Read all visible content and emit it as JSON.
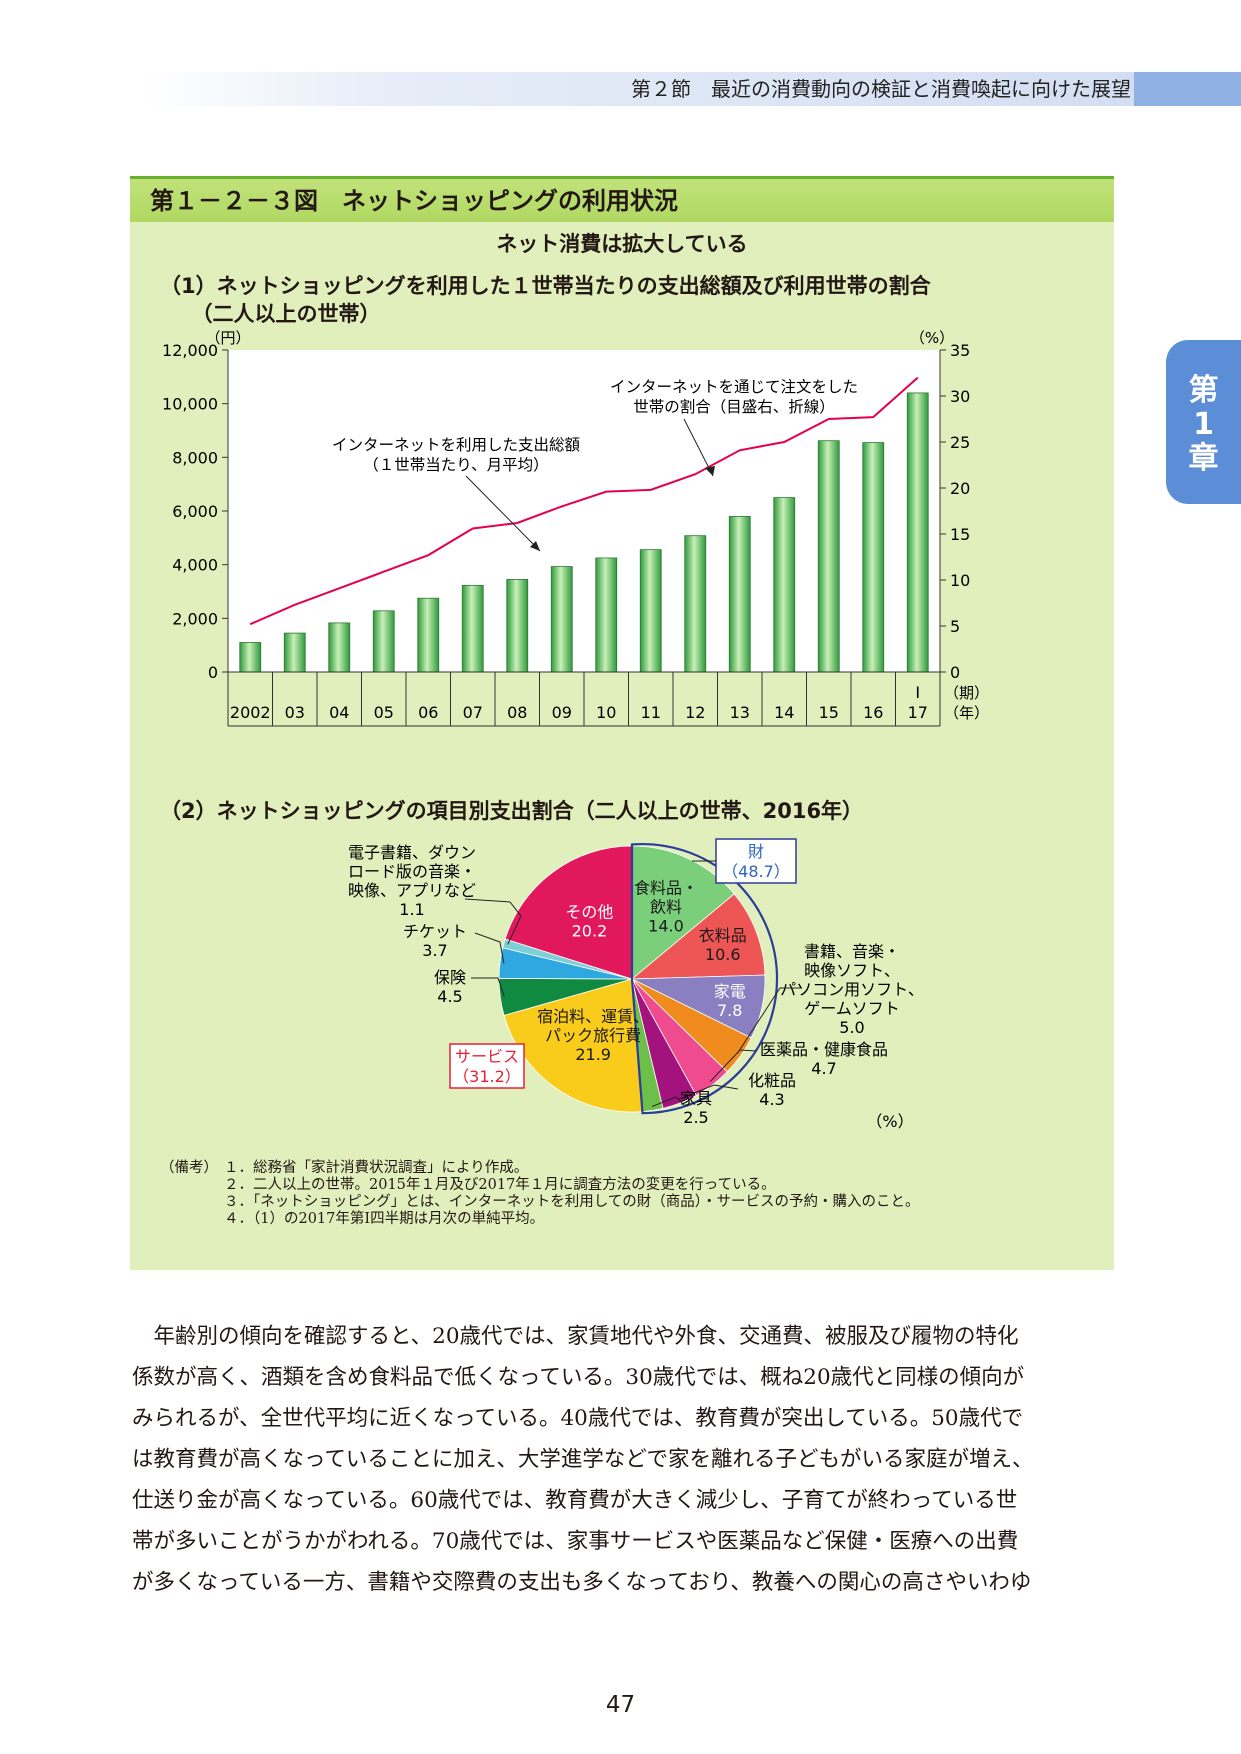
{
  "header": {
    "section": "第２節　最近の消費動向の検証と消費喚起に向けた展望"
  },
  "chapter_tab": {
    "line1": "第",
    "line2": "1",
    "line3": "章"
  },
  "figure": {
    "title": "第１－２－３図　ネットショッピングの利用状況",
    "subtitle": "ネット消費は拡大している",
    "section1_title": "（1）ネットショッピングを利用した１世帯当たりの支出総額及び利用世帯の割合\n　　（二人以上の世帯）",
    "section2_title": "（2）ネットショッピングの項目別支出割合（二人以上の世帯、2016年）"
  },
  "chart_data": [
    {
      "type": "bar",
      "categories": [
        "2002",
        "03",
        "04",
        "05",
        "06",
        "07",
        "08",
        "09",
        "10",
        "11",
        "12",
        "13",
        "14",
        "15",
        "16",
        "17"
      ],
      "period_marker": {
        "category": "17",
        "label": "Ⅰ",
        "unit": "（期）"
      },
      "x_unit": "（年）",
      "y_left_unit": "（円）",
      "y_right_unit": "（%）",
      "ylim_left": [
        0,
        12000
      ],
      "ylim_right": [
        0,
        35
      ],
      "yticks_left": [
        "0",
        "2,000",
        "4,000",
        "6,000",
        "8,000",
        "10,000",
        "12,000"
      ],
      "yticks_right": [
        "0",
        "5",
        "10",
        "15",
        "20",
        "25",
        "30",
        "35"
      ],
      "series": [
        {
          "name": "インターネットを利用した支出総額（１世帯当たり、月平均）",
          "type": "bar",
          "axis": "left",
          "values": [
            1100,
            1450,
            1830,
            2280,
            2750,
            3230,
            3450,
            3930,
            4250,
            4560,
            5080,
            5800,
            6500,
            8620,
            8550,
            10400
          ]
        },
        {
          "name": "インターネットを通じて注文をした世帯の割合（目盛右、折線）",
          "type": "line",
          "axis": "right",
          "values": [
            5.2,
            7.3,
            9.1,
            10.9,
            12.7,
            15.6,
            16.2,
            18.0,
            19.6,
            19.8,
            21.5,
            24.1,
            25.0,
            27.5,
            27.7,
            32.0
          ]
        }
      ],
      "annotations": [
        {
          "text_lines": [
            "インターネットを通じて注文をした",
            "世帯の割合（目盛右、折線）"
          ]
        },
        {
          "text_lines": [
            "インターネットを利用した支出総額",
            "（１世帯当たり、月平均）"
          ]
        }
      ],
      "bar_color": "#5bbf5f",
      "line_color": "#e5004f",
      "grid": false
    },
    {
      "type": "pie",
      "unit": "（%）",
      "slices": [
        {
          "label": "食料品・飲料",
          "value": 14.0,
          "value_text": "14.0",
          "color": "#7ccf7a",
          "group": "財"
        },
        {
          "label": "衣料品",
          "value": 10.6,
          "value_text": "10.6",
          "color": "#ee5656",
          "group": "財"
        },
        {
          "label": "家電",
          "value": 7.8,
          "value_text": "7.8",
          "color": "#8a7fc0",
          "group": "財"
        },
        {
          "label": "書籍、音楽・映像ソフト、パソコン用ソフト、ゲームソフト",
          "value": 5.0,
          "value_text": "5.0",
          "color": "#f08c1e",
          "group": "財"
        },
        {
          "label": "医薬品・健康食品",
          "value": 4.7,
          "value_text": "4.7",
          "color": "#ee4c8e",
          "group": "財"
        },
        {
          "label": "化粧品",
          "value": 4.3,
          "value_text": "4.3",
          "color": "#a4127e",
          "group": "財"
        },
        {
          "label": "家具",
          "value": 2.5,
          "value_text": "2.5",
          "color": "#6cc04a",
          "group": "財"
        },
        {
          "label": "宿泊料、運賃、パック旅行費",
          "value": 21.9,
          "value_text": "21.9",
          "color": "#f9cb1a",
          "group": "サービス"
        },
        {
          "label": "保険",
          "value": 4.5,
          "value_text": "4.5",
          "color": "#0f8a40",
          "group": "サービス"
        },
        {
          "label": "チケット",
          "value": 3.7,
          "value_text": "3.7",
          "color": "#2fa8e0",
          "group": "サービス"
        },
        {
          "label": "電子書籍、ダウンロード版の音楽・映像、アプリなど",
          "value": 1.1,
          "value_text": "1.1",
          "color": "#7fcfd6",
          "group": "サービス"
        },
        {
          "label": "その他",
          "value": 20.2,
          "value_text": "20.2",
          "color": "#e2185c",
          "group": "その他"
        }
      ],
      "inside_labels": {
        "food": [
          "食料品・",
          "飲料"
        ],
        "clothing": [
          "衣料品"
        ],
        "appliance": [
          "家電"
        ],
        "travel": [
          "宿泊料、運賃、",
          "パック旅行費"
        ],
        "other": [
          "その他"
        ]
      },
      "outside_labels": {
        "books": [
          "書籍、音楽・",
          "映像ソフト、",
          "パソコン用ソフト、",
          "ゲームソフト"
        ],
        "medicine": [
          "医薬品・健康食品"
        ],
        "cosmetics": [
          "化粧品"
        ],
        "furniture": [
          "家具"
        ],
        "insurance": [
          "保険"
        ],
        "ticket": [
          "チケット"
        ],
        "ebook": [
          "電子書籍、ダウン",
          "ロード版の音楽・",
          "映像、アプリなど"
        ]
      },
      "groups": [
        {
          "name": "財",
          "value_text": "（48.7）",
          "color": "#2a3c9c"
        },
        {
          "name": "サービス",
          "value_text": "（31.2）",
          "color": "#e5213a"
        }
      ]
    }
  ],
  "notes": {
    "label": "（備考）",
    "items": [
      "１．総務省「家計消費状況調査」により作成。",
      "２．二人以上の世帯。2015年１月及び2017年１月に調査方法の変更を行っている。",
      "３．「ネットショッピング」とは、インターネットを利用しての財（商品）・サービスの予約・購入のこと。",
      "４．（1）の2017年第Ⅰ四半期は月次の単純平均。"
    ]
  },
  "body": {
    "lines": [
      "　年齢別の傾向を確認すると、20歳代では、家賃地代や外食、交通費、被服及び履物の特化",
      "係数が高く、酒類を含め食料品で低くなっている。30歳代では、概ね20歳代と同様の傾向が",
      "みられるが、全世代平均に近くなっている。40歳代では、教育費が突出している。50歳代で",
      "は教育費が高くなっていることに加え、大学進学などで家を離れる子どもがいる家庭が増え、",
      "仕送り金が高くなっている。60歳代では、教育費が大きく減少し、子育てが終わっている世",
      "帯が多いことがうかがわれる。70歳代では、家事サービスや医薬品など保健・医療への出費",
      "が多くなっている一方、書籍や交際費の支出も多くなっており、教養への関心の高さやいわゆ"
    ]
  },
  "page_number": "47"
}
